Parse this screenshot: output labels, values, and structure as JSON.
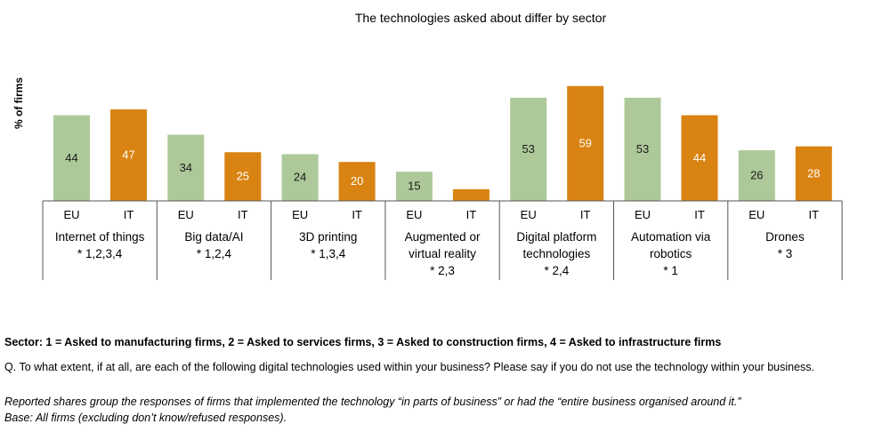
{
  "chart_data": {
    "type": "bar",
    "title": "The technologies asked about differ by sector",
    "xlabel": "",
    "ylabel": "% of firms",
    "ylim": [
      0,
      65
    ],
    "grid": false,
    "legend": "none",
    "categories": [
      {
        "label": [
          "Internet of things"
        ],
        "sectors": "* 1,2,3,4"
      },
      {
        "label": [
          "Big data/AI"
        ],
        "sectors": "* 1,2,4"
      },
      {
        "label": [
          "3D printing"
        ],
        "sectors": "* 1,3,4"
      },
      {
        "label": [
          "Augmented or",
          "virtual reality"
        ],
        "sectors": "* 2,3"
      },
      {
        "label": [
          "Digital platform",
          "technologies"
        ],
        "sectors": "* 2,4"
      },
      {
        "label": [
          "Automation via",
          "robotics"
        ],
        "sectors": "* 1"
      },
      {
        "label": [
          "Drones"
        ],
        "sectors": "* 3"
      }
    ],
    "series": [
      {
        "name": "EU",
        "color": "#adc999",
        "label_color": "#1a1a1a",
        "values": [
          44,
          34,
          24,
          15,
          53,
          53,
          26
        ],
        "labels": [
          "44",
          "34",
          "24",
          "15",
          "53",
          "53",
          "26"
        ]
      },
      {
        "name": "IT",
        "color": "#d98312",
        "label_color": "#ffffff",
        "values": [
          47,
          25,
          20,
          6,
          59,
          44,
          28
        ],
        "labels": [
          "47",
          "25",
          "20",
          "",
          "59",
          "44",
          "28"
        ]
      }
    ]
  },
  "footer": {
    "sector_legend": "Sector: 1 = Asked to manufacturing firms, 2 = Asked to services firms, 3 = Asked to construction firms, 4 = Asked to infrastructure firms",
    "question": "Q. To what extent, if at all, are each of the following digital technologies used within your business? Please say if you do not use the technology within your business.",
    "reported": "Reported shares group the responses of firms that implemented the technology “in parts of business” or had the “entire business organised around it.”",
    "base": "Base: All firms (excluding don’t know/refused responses)."
  }
}
